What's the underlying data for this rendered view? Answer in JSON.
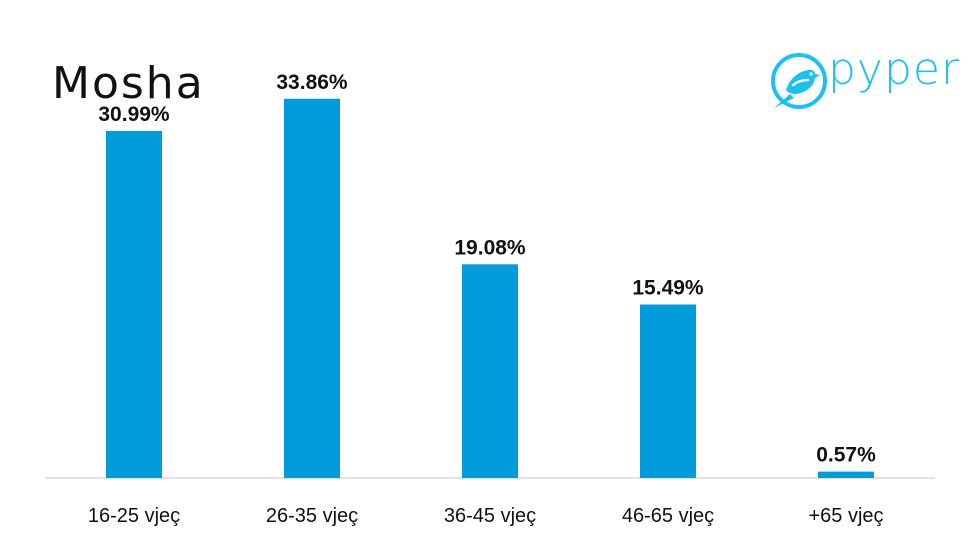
{
  "title": "Mosha",
  "logo": {
    "text": "pyper",
    "color": "#1cc1f0",
    "icon": "bird-icon"
  },
  "colors": {
    "bar": "#019cd9",
    "axis": "#d9d9d9"
  },
  "chart_data": {
    "type": "bar",
    "title": "Mosha",
    "categories": [
      "16-25 vjeç",
      "26-35 vjeç",
      "36-45 vjeç",
      "46-65 vjeç",
      "+65 vjeç"
    ],
    "values": [
      30.99,
      33.86,
      19.08,
      15.49,
      0.57
    ],
    "data_labels": [
      "30.99%",
      "33.86%",
      "19.08%",
      "15.49%",
      "0.57%"
    ],
    "ylim": [
      0,
      40
    ],
    "unit": "%",
    "grid": false,
    "legend": "none"
  }
}
